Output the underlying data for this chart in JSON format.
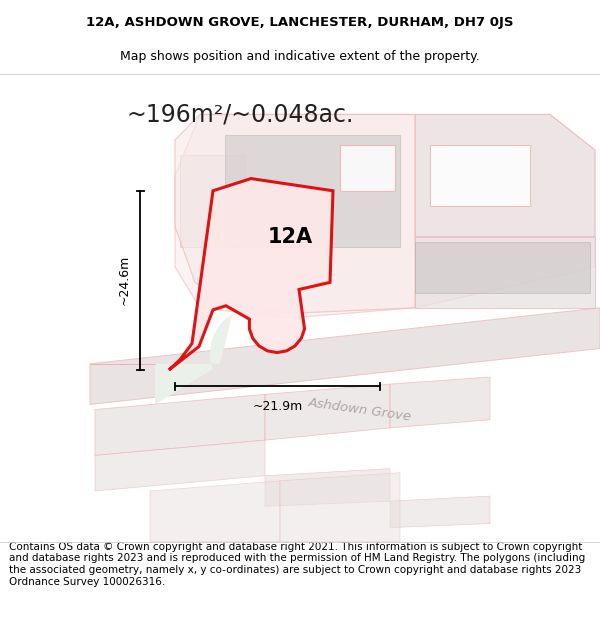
{
  "title_line1": "12A, ASHDOWN GROVE, LANCHESTER, DURHAM, DH7 0JS",
  "title_line2": "Map shows position and indicative extent of the property.",
  "area_text": "~196m²/~0.048ac.",
  "label_12A": "12A",
  "label_street": "Ashdown Grove",
  "dim_height": "~24.6m",
  "dim_width": "~21.9m",
  "footer_text": "Contains OS data © Crown copyright and database right 2021. This information is subject to Crown copyright and database rights 2023 and is reproduced with the permission of HM Land Registry. The polygons (including the associated geometry, namely x, y co-ordinates) are subject to Crown copyright and database rights 2023 Ordnance Survey 100026316.",
  "map_bg": "#eaf0ea",
  "red_color": "#dd0000",
  "pink_edge": "#f0b0b0",
  "pink_fill": "#f8e8e8",
  "gray_build": "#cdc9c9",
  "road_fill": "#e0d8d8",
  "title_fs": 9.5,
  "subtitle_fs": 9.0,
  "footer_fs": 7.5,
  "area_fs": 17,
  "label_12a_fs": 15,
  "street_fs": 9.5,
  "dim_fs": 9
}
